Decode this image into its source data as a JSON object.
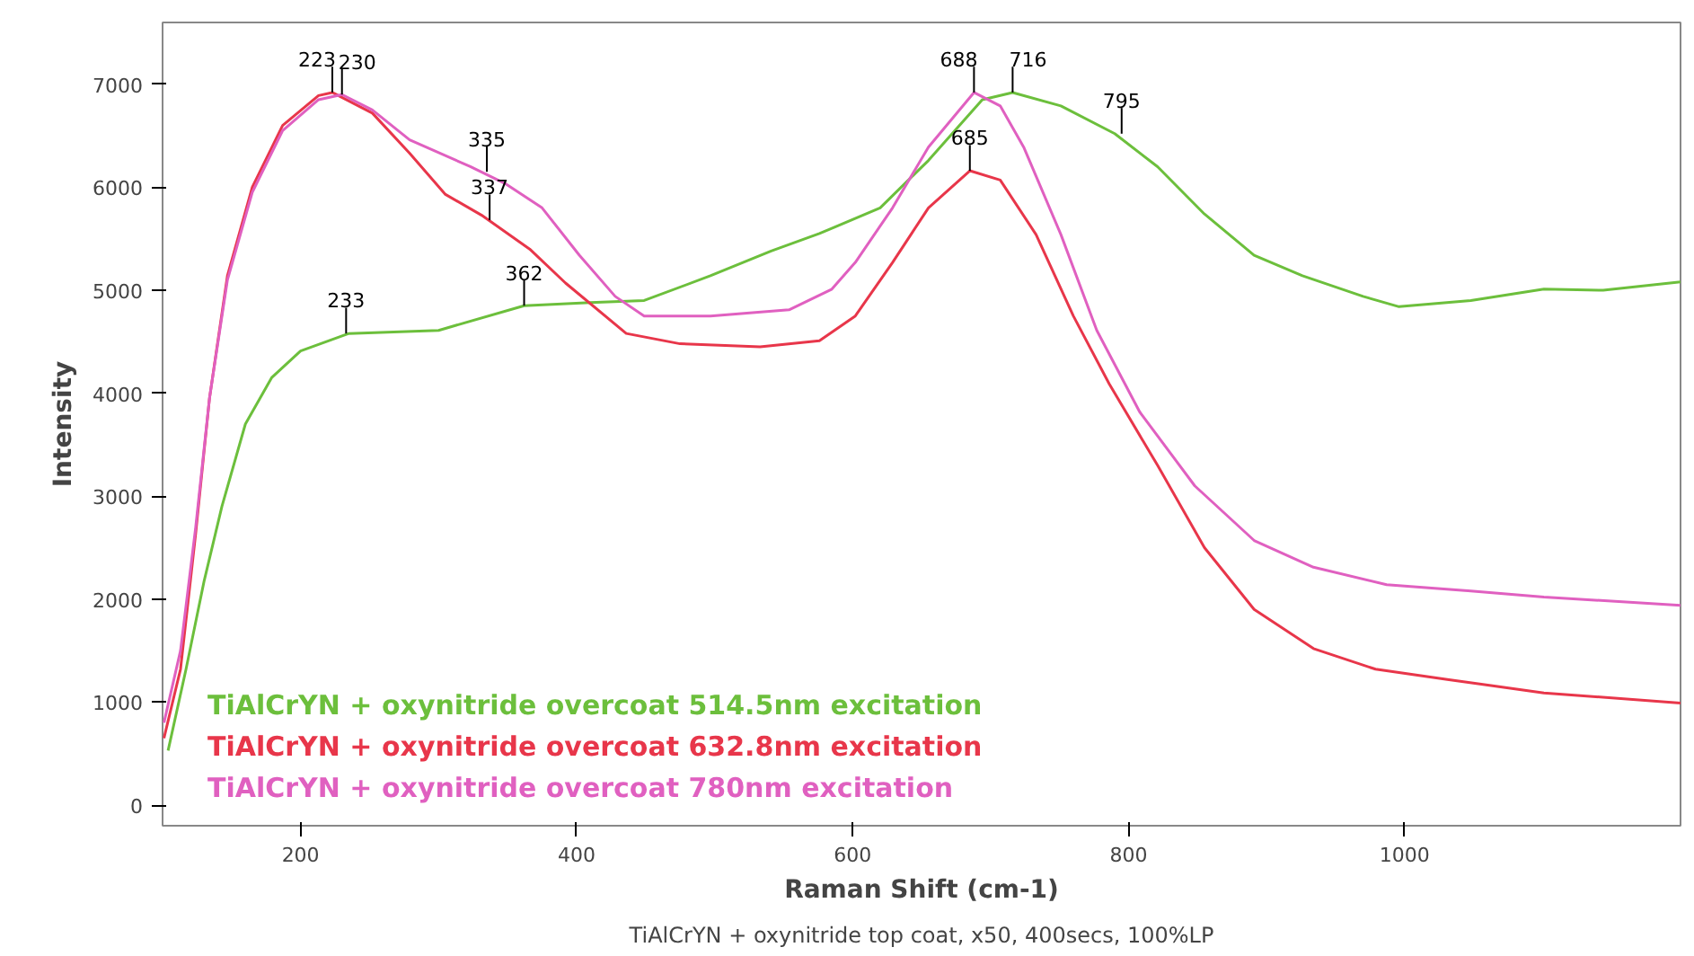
{
  "chart_data": {
    "type": "line",
    "xlabel": "Raman Shift (cm-1)",
    "ylabel": "Intensity",
    "xlim": [
      100,
      1200
    ],
    "ylim": [
      -200,
      7600
    ],
    "xticks": [
      200,
      400,
      600,
      800,
      1000
    ],
    "yticks": [
      0,
      1000,
      2000,
      3000,
      4000,
      5000,
      6000,
      7000
    ],
    "grid": false,
    "legend": "bottom left",
    "marker": "none",
    "line_style": "solid",
    "series": [
      {
        "name": "TiAlCrYN + oxynitride overcoat 514.5nm excitation",
        "color": "#6cbf3c",
        "x": [
          104,
          117,
          130,
          143,
          160,
          179,
          200,
          235,
          300,
          362,
          410,
          449,
          497,
          541,
          576,
          620,
          655,
          694,
          716,
          751,
          790,
          821,
          855,
          891,
          926,
          970,
          996,
          1048,
          1101,
          1144,
          1200
        ],
        "values": [
          530,
          1320,
          2170,
          2900,
          3700,
          4150,
          4410,
          4580,
          4610,
          4850,
          4880,
          4900,
          5140,
          5380,
          5550,
          5800,
          6260,
          6850,
          6920,
          6790,
          6520,
          6200,
          5740,
          5340,
          5140,
          4940,
          4840,
          4900,
          5010,
          5000,
          5080
        ]
      },
      {
        "name": "TiAlCrYN + oxynitride overcoat 632.8nm excitation",
        "color": "#e8364a",
        "x": [
          101,
          113,
          124,
          134,
          147,
          165,
          187,
          213,
          223,
          252,
          279,
          305,
          331,
          366,
          392,
          436,
          475,
          533,
          576,
          602,
          629,
          655,
          685,
          707,
          733,
          760,
          786,
          821,
          855,
          891,
          934,
          979,
          1031,
          1101,
          1200
        ],
        "values": [
          650,
          1320,
          2640,
          3950,
          5140,
          6000,
          6600,
          6890,
          6920,
          6720,
          6330,
          5930,
          5730,
          5400,
          5070,
          4580,
          4480,
          4450,
          4510,
          4750,
          5270,
          5800,
          6160,
          6070,
          5540,
          4750,
          4090,
          3300,
          2500,
          1900,
          1520,
          1320,
          1220,
          1090,
          990
        ]
      },
      {
        "name": "TiAlCrYN + oxynitride overcoat 780nm excitation",
        "color": "#e060c0",
        "x": [
          101,
          113,
          124,
          134,
          147,
          165,
          187,
          213,
          230,
          252,
          279,
          323,
          349,
          375,
          402,
          428,
          449,
          497,
          554,
          585,
          602,
          629,
          655,
          688,
          707,
          724,
          751,
          777,
          808,
          848,
          891,
          934,
          987,
          1048,
          1101,
          1200
        ],
        "values": [
          800,
          1500,
          2700,
          3950,
          5100,
          5950,
          6550,
          6850,
          6900,
          6750,
          6460,
          6200,
          6030,
          5800,
          5340,
          4940,
          4750,
          4750,
          4810,
          5010,
          5270,
          5800,
          6390,
          6920,
          6790,
          6390,
          5540,
          4610,
          3820,
          3100,
          2570,
          2310,
          2140,
          2080,
          2020,
          1940
        ]
      }
    ],
    "annotations": [
      {
        "text": "223",
        "x": 223,
        "y": 6920
      },
      {
        "text": "230",
        "x": 230,
        "y": 6900
      },
      {
        "text": "335",
        "x": 335,
        "y": 6150
      },
      {
        "text": "337",
        "x": 337,
        "y": 5680
      },
      {
        "text": "233",
        "x": 233,
        "y": 4580
      },
      {
        "text": "362",
        "x": 362,
        "y": 4850
      },
      {
        "text": "688",
        "x": 688,
        "y": 6920
      },
      {
        "text": "716",
        "x": 716,
        "y": 6920
      },
      {
        "text": "795",
        "x": 795,
        "y": 6520
      },
      {
        "text": "685",
        "x": 685,
        "y": 6160
      },
      "TiAlCrYN + oxynitride top coat, x50, 400secs, 100%LP"
    ]
  }
}
